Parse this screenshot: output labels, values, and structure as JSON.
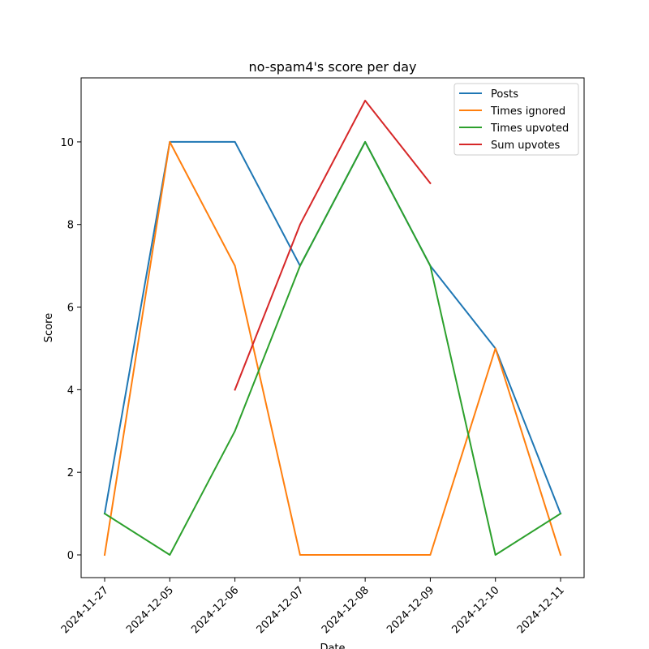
{
  "chart_data": {
    "type": "line",
    "title": "no-spam4's score per day",
    "xlabel": "Date",
    "ylabel": "Score",
    "categories": [
      "2024-11-27",
      "2024-12-05",
      "2024-12-06",
      "2024-12-07",
      "2024-12-08",
      "2024-12-09",
      "2024-12-10",
      "2024-12-11"
    ],
    "ylim": [
      -0.55,
      11.55
    ],
    "yticks": [
      0,
      2,
      4,
      6,
      8,
      10
    ],
    "grid": false,
    "legend_position": "top-right",
    "series": [
      {
        "name": "Posts",
        "color": "#1f77b4",
        "values": [
          1,
          10,
          10,
          7,
          10,
          7,
          5,
          1
        ]
      },
      {
        "name": "Times ignored",
        "color": "#ff7f0e",
        "values": [
          0,
          10,
          7,
          0,
          0,
          0,
          5,
          0
        ]
      },
      {
        "name": "Times upvoted",
        "color": "#2ca02c",
        "values": [
          1,
          0,
          3,
          7,
          10,
          7,
          0,
          1
        ]
      },
      {
        "name": "Sum upvotes",
        "color": "#d62728",
        "values": [
          null,
          null,
          4,
          8,
          11,
          9,
          null,
          null
        ]
      }
    ]
  }
}
